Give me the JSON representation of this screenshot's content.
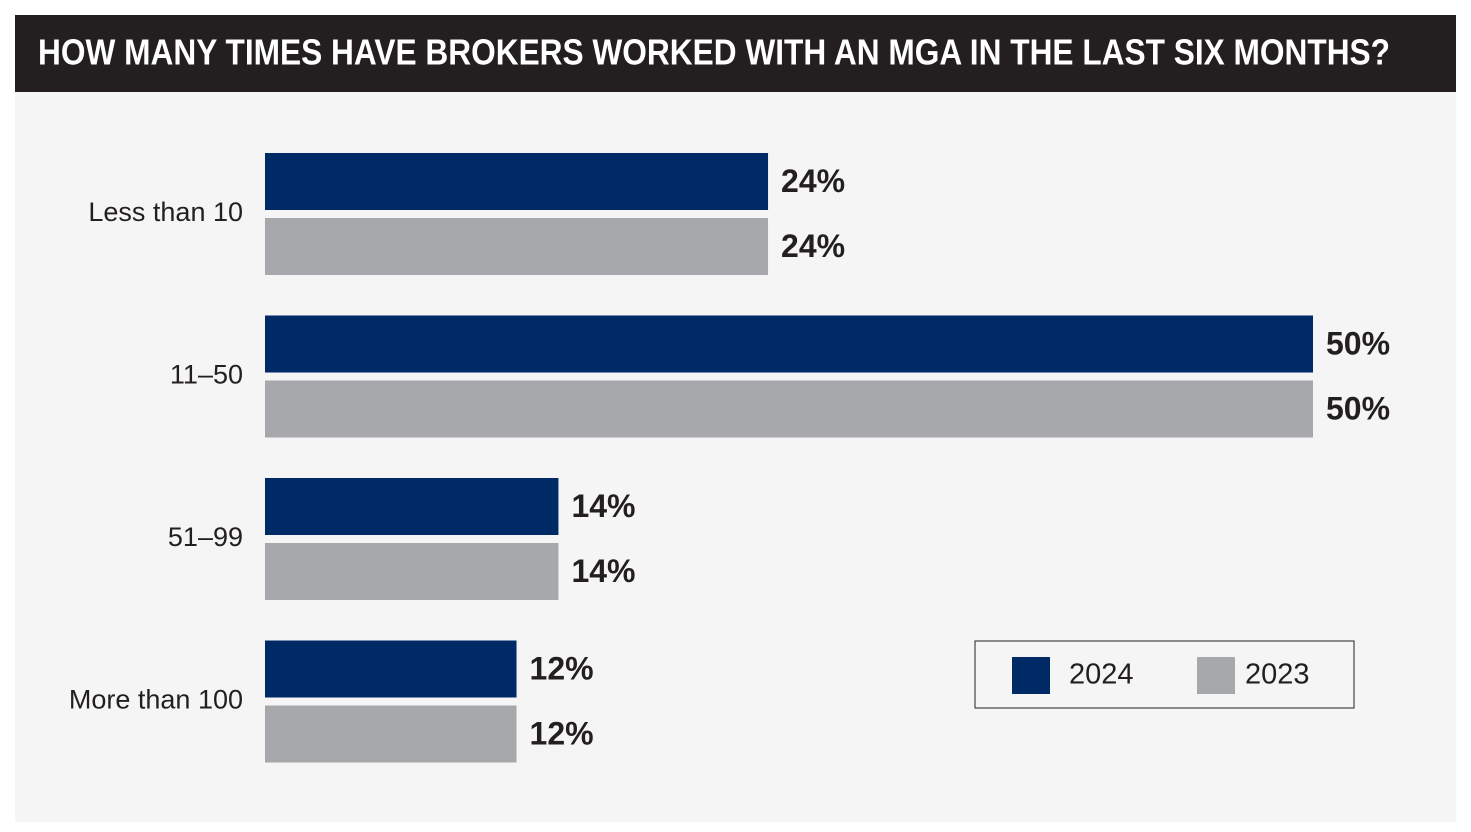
{
  "chart_data": {
    "type": "hbar",
    "title": "HOW MANY TIMES HAVE BROKERS WORKED WITH AN MGA IN THE LAST SIX MONTHS?",
    "categories": [
      "Less than 10",
      "11–50",
      "51–99",
      "More than 100"
    ],
    "series": [
      {
        "name": "2024",
        "color": "#002a66",
        "values": [
          24,
          50,
          14,
          12
        ],
        "value_labels": [
          "24%",
          "50%",
          "14%",
          "12%"
        ]
      },
      {
        "name": "2023",
        "color": "#a7a8ab",
        "values": [
          24,
          50,
          14,
          12
        ],
        "value_labels": [
          "24%",
          "50%",
          "14%",
          "12%"
        ]
      }
    ],
    "legend": "lower right"
  }
}
